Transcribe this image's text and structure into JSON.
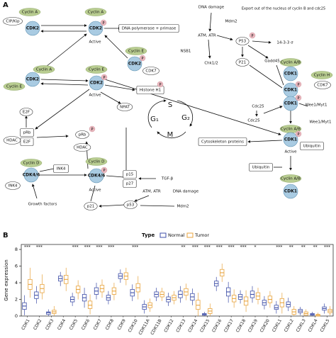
{
  "panel_a": {
    "label": "A",
    "phospho_label": "P",
    "nodes": [
      {
        "label": "Cyclin A",
        "kind": "cyclin"
      },
      {
        "label": "CIP/Kip",
        "kind": "oval"
      },
      {
        "label": "CDK2",
        "kind": "cdk"
      },
      {
        "label": "Cyclin A",
        "kind": "cyclin"
      },
      {
        "label": "CDK2",
        "kind": "cdk",
        "phospho": true
      },
      {
        "label": "Active",
        "kind": "text"
      },
      {
        "label": "DNA polymerase + primase",
        "kind": "box"
      },
      {
        "label": "Cyclin E",
        "kind": "cyclin"
      },
      {
        "label": "CDK2",
        "kind": "cdk",
        "phospho": true
      },
      {
        "label": "CDK7",
        "kind": "oval"
      },
      {
        "label": "Cyclin A",
        "kind": "cyclin"
      },
      {
        "label": "Cyclin E",
        "kind": "cyclin"
      },
      {
        "label": "CDK2",
        "kind": "cdk"
      },
      {
        "label": "Cyclin E",
        "kind": "cyclin"
      },
      {
        "label": "CDK2",
        "kind": "cdk",
        "phospho": true
      },
      {
        "label": "Active",
        "kind": "text"
      },
      {
        "label": "Histone H1",
        "kind": "box",
        "phospho": true
      },
      {
        "label": "NPAT",
        "kind": "oval"
      },
      {
        "label": "E2F",
        "kind": "oval"
      },
      {
        "label": "pRb",
        "kind": "box"
      },
      {
        "label": "E2F",
        "kind": "box"
      },
      {
        "label": "HDAC",
        "kind": "oval"
      },
      {
        "label": "pRb",
        "kind": "oval",
        "phospho": true
      },
      {
        "label": "HDAC",
        "kind": "oval"
      },
      {
        "label": "Cyclin D",
        "kind": "cyclin"
      },
      {
        "label": "CDK4/6",
        "kind": "cdk"
      },
      {
        "label": "INK4",
        "kind": "box"
      },
      {
        "label": "INK4",
        "kind": "oval"
      },
      {
        "label": "Growth factors",
        "kind": "text"
      },
      {
        "label": "Cyclin D",
        "kind": "cyclin"
      },
      {
        "label": "CDK4/6",
        "kind": "cdk",
        "phospho": true
      },
      {
        "label": "Active",
        "kind": "text"
      },
      {
        "label": "p15",
        "kind": "box"
      },
      {
        "label": "p27",
        "kind": "box"
      },
      {
        "label": "TGF-β",
        "kind": "text"
      },
      {
        "label": "ATM, ATR",
        "kind": "text"
      },
      {
        "label": "DNA damage",
        "kind": "text"
      },
      {
        "label": "p21",
        "kind": "oval"
      },
      {
        "label": "p53",
        "kind": "oval"
      },
      {
        "label": "Mdm2",
        "kind": "text"
      },
      {
        "label": "DNA damage",
        "kind": "text"
      },
      {
        "label": "Export out of the nucleus of cyclin B and cdc25",
        "kind": "text"
      },
      {
        "label": "Mdm2",
        "kind": "text"
      },
      {
        "label": "ATM, ATR",
        "kind": "text"
      },
      {
        "label": "P53",
        "kind": "oval",
        "phospho": true
      },
      {
        "label": "14-3-3 σ",
        "kind": "text"
      },
      {
        "label": "NSB1",
        "kind": "text"
      },
      {
        "label": "Chk1/2",
        "kind": "text"
      },
      {
        "label": "P21",
        "kind": "oval"
      },
      {
        "label": "Gadd45",
        "kind": "text"
      },
      {
        "label": "Cyclin A/B",
        "kind": "cyclin"
      },
      {
        "label": "CDK1",
        "kind": "cdk"
      },
      {
        "label": "Cyclin H",
        "kind": "cyclin"
      },
      {
        "label": "CDK7",
        "kind": "oval"
      },
      {
        "label": "CDK1",
        "kind": "cdk",
        "phospho": true
      },
      {
        "label": "CDK1",
        "kind": "cdk",
        "phospho": true
      },
      {
        "label": "Cdc25",
        "kind": "text"
      },
      {
        "label": "Cdc25",
        "kind": "text"
      },
      {
        "label": "Wee1/Myt1",
        "kind": "text"
      },
      {
        "label": "Wee1/Myt1",
        "kind": "text"
      },
      {
        "label": "Cyclin A/B",
        "kind": "cyclin"
      },
      {
        "label": "CDK1",
        "kind": "cdk",
        "phospho": true
      },
      {
        "label": "Active",
        "kind": "text"
      },
      {
        "label": "Cytoskeleton proteins",
        "kind": "box"
      },
      {
        "label": "Ubiquitin",
        "kind": "box"
      },
      {
        "label": "Ubiquitin",
        "kind": "box"
      },
      {
        "label": "Cyclin A/B",
        "kind": "cyclin"
      },
      {
        "label": "CDK1",
        "kind": "cdk"
      },
      {
        "label": "S",
        "kind": "phase"
      },
      {
        "label": "G₂",
        "kind": "phase"
      },
      {
        "label": "M",
        "kind": "phase"
      },
      {
        "label": "G₁",
        "kind": "phase"
      }
    ]
  },
  "panel_b_label": "B",
  "chart_data": {
    "type": "box",
    "y_label": "Gene expression",
    "legend_title": "Type",
    "categories": [
      "CDK1",
      "CDK2",
      "CDK3",
      "CDK4",
      "CDK5",
      "CDK6",
      "CDK7",
      "CDK8",
      "CDK9",
      "CDK10",
      "CDK11A",
      "CDK11B",
      "CDK12",
      "CDK13",
      "CDK14",
      "CDK15",
      "CDK16",
      "CDK17",
      "CDK18",
      "CDK19",
      "CDK20",
      "CDKL1",
      "CDKL2",
      "CDKL3",
      "CDKL4",
      "CDKL5"
    ],
    "annotations": [
      "***",
      "***",
      null,
      null,
      "***",
      "***",
      "***",
      "***",
      null,
      "***",
      null,
      null,
      null,
      "**",
      "***",
      "***",
      "***",
      "***",
      "***",
      "*",
      null,
      "***",
      "**",
      "**",
      "**",
      "***"
    ],
    "ylim": [
      0,
      8.6
    ],
    "yticks": [
      0,
      2,
      4,
      6,
      8
    ],
    "series": [
      {
        "name": "Normal",
        "color": "#3f4fa8",
        "median": [
          1.2,
          2.5,
          0.4,
          4.5,
          2.0,
          2.2,
          3.0,
          2.2,
          4.8,
          2.8,
          1.1,
          2.6,
          2.0,
          2.6,
          2.3,
          0.2,
          3.9,
          2.9,
          2.3,
          2.6,
          1.6,
          1.0,
          1.4,
          0.6,
          0.2,
          0.9
        ],
        "q1": [
          0.8,
          2.1,
          0.2,
          4.2,
          1.7,
          1.8,
          2.6,
          1.9,
          4.5,
          2.4,
          0.8,
          2.3,
          1.7,
          2.2,
          1.9,
          0.1,
          3.6,
          2.4,
          2.0,
          2.2,
          1.3,
          0.8,
          1.1,
          0.4,
          0.1,
          0.7
        ],
        "q3": [
          1.6,
          2.9,
          0.5,
          4.8,
          2.3,
          2.6,
          3.4,
          2.5,
          5.1,
          3.2,
          1.4,
          2.9,
          2.3,
          3.0,
          2.7,
          0.3,
          4.2,
          3.4,
          2.6,
          3.0,
          1.9,
          1.3,
          1.7,
          0.8,
          0.3,
          1.1
        ],
        "whisker_low": [
          0.1,
          1.5,
          0.0,
          3.6,
          1.2,
          1.0,
          2.0,
          1.4,
          4.0,
          1.8,
          0.3,
          1.8,
          1.2,
          1.6,
          1.3,
          0.0,
          3.0,
          1.6,
          1.5,
          1.6,
          0.8,
          0.3,
          0.6,
          0.1,
          0.0,
          0.3
        ],
        "whisker_high": [
          2.5,
          3.6,
          0.8,
          5.3,
          2.8,
          3.4,
          4.0,
          3.0,
          5.6,
          3.8,
          1.9,
          3.4,
          2.8,
          3.6,
          3.3,
          0.5,
          4.7,
          4.1,
          3.1,
          3.6,
          2.4,
          1.8,
          2.2,
          1.1,
          0.5,
          1.5
        ]
      },
      {
        "name": "Tumor",
        "color": "#e8a33c",
        "median": [
          3.8,
          3.3,
          0.5,
          4.4,
          3.2,
          1.3,
          3.3,
          3.0,
          4.8,
          3.4,
          1.3,
          2.6,
          2.2,
          2.9,
          1.3,
          0.6,
          5.2,
          2.1,
          1.8,
          2.4,
          2.0,
          1.6,
          0.5,
          0.3,
          0.1,
          0.6
        ],
        "q1": [
          3.2,
          2.8,
          0.3,
          3.9,
          2.8,
          0.9,
          2.9,
          2.6,
          4.4,
          2.9,
          1.0,
          2.3,
          1.9,
          2.5,
          0.8,
          0.3,
          4.8,
          1.7,
          1.3,
          2.0,
          1.6,
          1.1,
          0.2,
          0.1,
          0.0,
          0.4
        ],
        "q3": [
          4.4,
          3.8,
          0.7,
          4.9,
          3.6,
          1.8,
          3.7,
          3.4,
          5.2,
          3.9,
          1.6,
          2.9,
          2.5,
          3.3,
          1.9,
          0.9,
          5.6,
          2.5,
          2.3,
          2.8,
          2.4,
          2.1,
          0.8,
          0.5,
          0.2,
          0.8
        ],
        "whisker_low": [
          2.2,
          2.0,
          0.0,
          3.0,
          2.0,
          0.2,
          2.2,
          1.9,
          3.7,
          2.0,
          0.5,
          1.8,
          1.4,
          1.9,
          0.0,
          0.0,
          4.1,
          1.0,
          0.5,
          1.4,
          1.0,
          0.3,
          0.0,
          0.0,
          0.0,
          0.1
        ],
        "whisker_high": [
          5.8,
          5.0,
          1.2,
          5.8,
          4.3,
          2.6,
          4.4,
          4.0,
          5.8,
          4.8,
          2.1,
          3.4,
          3.0,
          3.9,
          2.8,
          1.5,
          6.3,
          3.2,
          3.1,
          3.4,
          3.0,
          2.8,
          1.2,
          0.8,
          0.4,
          1.2
        ]
      }
    ]
  }
}
